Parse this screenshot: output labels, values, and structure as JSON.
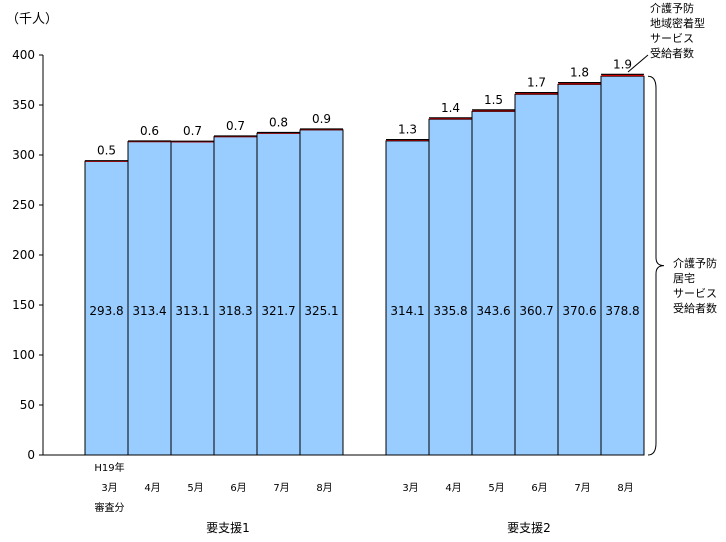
{
  "unit_label": "（千人）",
  "notes": {
    "top": "介護予防\n地域密着型\nサービス\n受給者数",
    "right": "介護予防\n居宅\nサービス\n受給者数"
  },
  "colors": {
    "bar_fill": "#99ccff",
    "bar_top": "#cc0000",
    "axis": "#000000"
  },
  "chart_data": {
    "type": "bar",
    "stacked": true,
    "ylim": [
      0,
      400
    ],
    "yticks": [
      0,
      50,
      100,
      150,
      200,
      250,
      300,
      350,
      400
    ],
    "groups": [
      {
        "label": "要支援1",
        "categories": [
          [
            "H19年",
            "3月",
            "審査分"
          ],
          [
            "4月"
          ],
          [
            "5月"
          ],
          [
            "6月"
          ],
          [
            "7月"
          ],
          [
            "8月"
          ]
        ],
        "series": [
          {
            "values": [
              293.8,
              313.4,
              313.1,
              318.3,
              321.7,
              325.1
            ]
          },
          {
            "values": [
              0.5,
              0.6,
              0.7,
              0.7,
              0.8,
              0.9
            ]
          }
        ]
      },
      {
        "label": "要支援2",
        "categories": [
          [
            "3月"
          ],
          [
            "4月"
          ],
          [
            "5月"
          ],
          [
            "6月"
          ],
          [
            "7月"
          ],
          [
            "8月"
          ]
        ],
        "series": [
          {
            "values": [
              314.1,
              335.8,
              343.6,
              360.7,
              370.6,
              378.8
            ]
          },
          {
            "values": [
              1.3,
              1.4,
              1.5,
              1.7,
              1.8,
              1.9
            ]
          }
        ]
      }
    ]
  }
}
